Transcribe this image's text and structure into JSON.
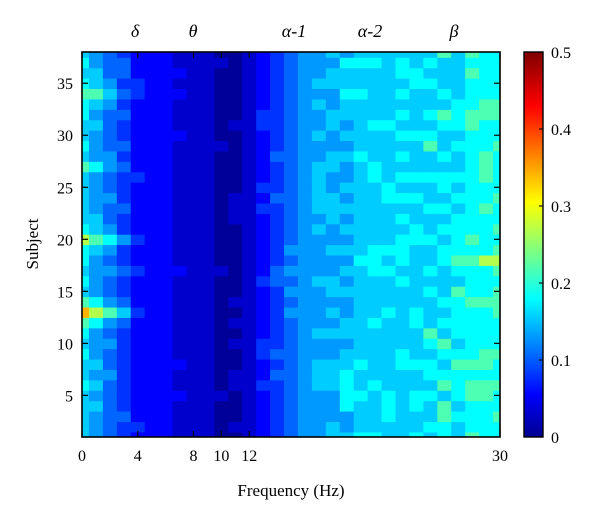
{
  "chart_data": {
    "type": "heatmap",
    "subtype": "filled-contour",
    "xlabel": "Frequency (Hz)",
    "ylabel": "Subject",
    "xlim": [
      0,
      30
    ],
    "ylim": [
      1,
      38
    ],
    "x_ticks": [
      {
        "value": 0,
        "label": "0"
      },
      {
        "value": 4,
        "label": "4"
      },
      {
        "value": 8,
        "label": "8"
      },
      {
        "value": 10,
        "label": "10"
      },
      {
        "value": 12,
        "label": "12"
      },
      {
        "value": 30,
        "label": "30"
      }
    ],
    "y_ticks": [
      {
        "value": 5,
        "label": "5"
      },
      {
        "value": 10,
        "label": "10"
      },
      {
        "value": 15,
        "label": "15"
      },
      {
        "value": 20,
        "label": "20"
      },
      {
        "value": 25,
        "label": "25"
      },
      {
        "value": 30,
        "label": "30"
      },
      {
        "value": 35,
        "label": "35"
      }
    ],
    "band_labels": [
      {
        "label": "δ",
        "freq": 1.8
      },
      {
        "label": "θ",
        "freq": 4.5
      },
      {
        "label": "α-1",
        "freq": 8.2
      },
      {
        "label": "α-2",
        "freq": 11.3
      },
      {
        "label": "β",
        "freq": 20.5
      }
    ],
    "colorbar": {
      "colormap": "jet",
      "range": [
        0,
        0.5
      ],
      "ticks": [
        {
          "value": 0,
          "label": "0"
        },
        {
          "value": 0.1,
          "label": "0.1"
        },
        {
          "value": 0.2,
          "label": "0.2"
        },
        {
          "value": 0.3,
          "label": "0.3"
        },
        {
          "value": 0.4,
          "label": "0.4"
        },
        {
          "value": 0.5,
          "label": "0.5"
        }
      ]
    },
    "contour_levels": [
      0,
      0.025,
      0.05,
      0.075,
      0.1,
      0.125,
      0.15,
      0.175,
      0.2,
      0.25,
      0.3,
      0.4,
      0.5
    ],
    "x": [
      0,
      1,
      2,
      3,
      4,
      5,
      6,
      7,
      8,
      9,
      10,
      11,
      12,
      13,
      14,
      15,
      16,
      17,
      18,
      19,
      20,
      21,
      22,
      23,
      24,
      25,
      26,
      27,
      28,
      29,
      30
    ],
    "y": [
      1,
      2,
      3,
      4,
      5,
      6,
      7,
      8,
      9,
      10,
      11,
      12,
      13,
      14,
      15,
      16,
      17,
      18,
      19,
      20,
      21,
      22,
      23,
      24,
      25,
      26,
      27,
      28,
      29,
      30,
      31,
      32,
      33,
      34,
      35,
      36,
      37,
      38
    ],
    "z_profile_by_frequency": [
      0.155,
      0.13,
      0.11,
      0.085,
      0.065,
      0.055,
      0.05,
      0.045,
      0.035,
      0.025,
      0.02,
      0.02,
      0.04,
      0.07,
      0.09,
      0.11,
      0.125,
      0.135,
      0.14,
      0.145,
      0.15,
      0.155,
      0.155,
      0.16,
      0.165,
      0.165,
      0.17,
      0.17,
      0.175,
      0.175,
      0.175
    ],
    "subject_hotspots": [
      {
        "subject": 13,
        "freq": 0,
        "value": 0.34
      },
      {
        "subject": 20,
        "freq": 0,
        "value": 0.27
      },
      {
        "subject": 34,
        "freq": 0,
        "value": 0.24
      },
      {
        "subject": 27,
        "freq": 0,
        "value": 0.21
      },
      {
        "subject": 18,
        "freq": 30,
        "value": 0.27
      },
      {
        "subject": 14,
        "freq": 30,
        "value": 0.24
      },
      {
        "subject": 32,
        "freq": 30,
        "value": 0.22
      },
      {
        "subject": 6,
        "freq": 30,
        "value": 0.24
      },
      {
        "subject": 9,
        "freq": 30,
        "value": 0.21
      },
      {
        "subject": 3,
        "freq": 30,
        "value": 0.2
      },
      {
        "subject": 24,
        "freq": 30,
        "value": 0.2
      }
    ]
  }
}
